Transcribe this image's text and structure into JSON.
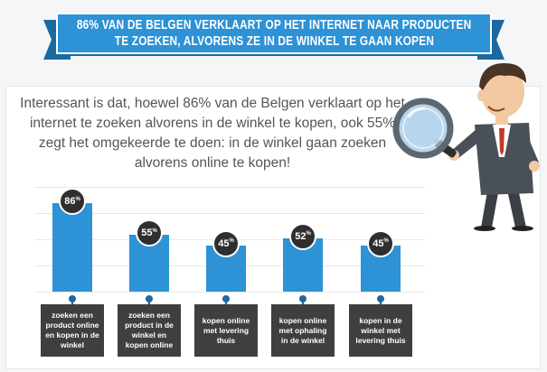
{
  "banner": {
    "line1": "86% VAN DE BELGEN VERKLAART OP HET INTERNET NAAR PRODUCTEN",
    "line2": "TE ZOEKEN, ALVORENS ZE IN DE WINKEL TE GAAN KOPEN"
  },
  "intro": {
    "text": "Interessant is dat, hoewel 86% van de Belgen verklaart op het internet te zoeken alvorens in de winkel te kopen, ook 55% zegt het omgekeerde te doen: in de winkel gaan zoeken alvorens online te kopen!"
  },
  "colors": {
    "accent": "#2d92d6",
    "accent_dark": "#1a6aa0",
    "label_bg": "#3f3f3f",
    "circle_bg": "#2f2f2f"
  },
  "illustration": {
    "icon": "man-with-magnifying-glass"
  },
  "chart_data": {
    "type": "bar",
    "unit": "%",
    "ylim": [
      0,
      100
    ],
    "grid": true,
    "categories": [
      "zoeken een product online en kopen in de winkel",
      "zoeken een product in de winkel en kopen online",
      "kopen online met levering thuis",
      "kopen online met ophaling in de winkel",
      "kopen in de winkel met levering thuis"
    ],
    "values": [
      86,
      55,
      45,
      52,
      45
    ]
  }
}
